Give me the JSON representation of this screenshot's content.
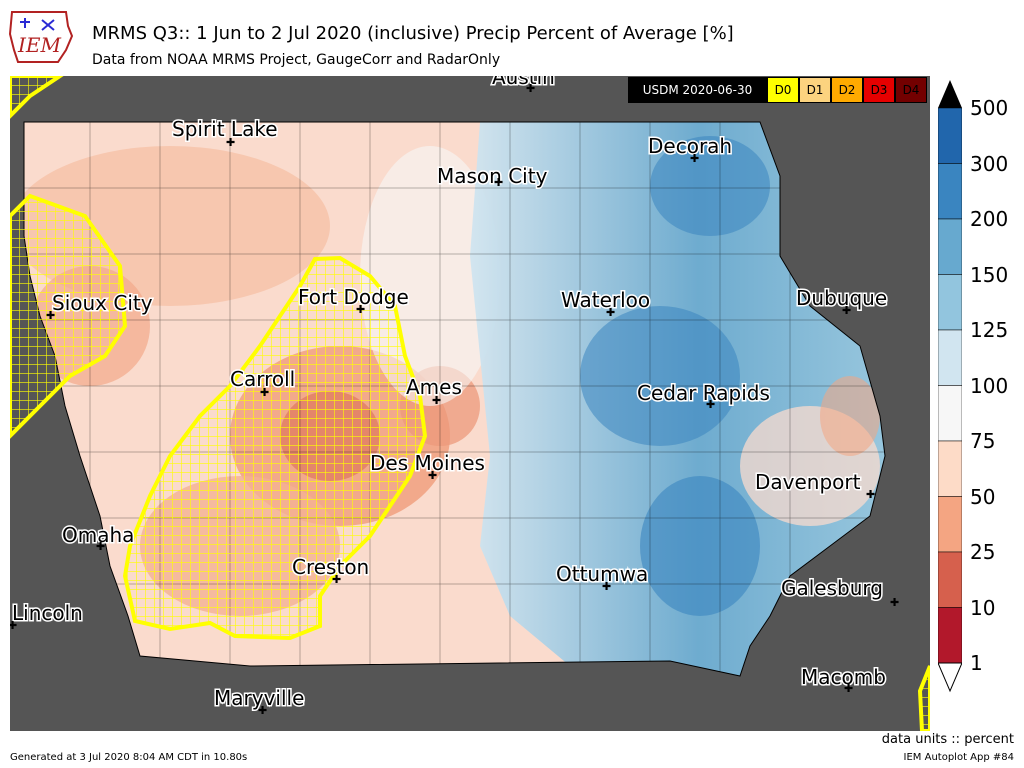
{
  "header": {
    "title": "MRMS Q3:: 1 Jun to 2 Jul 2020 (inclusive) Precip Percent of Average [%]",
    "subtitle": "Data from NOAA MRMS Project, GaugeCorr and RadarOnly",
    "logo_text": "IEM"
  },
  "usdm": {
    "label": "USDM 2020-06-30",
    "categories": [
      {
        "label": "D0",
        "color": "#ffff00"
      },
      {
        "label": "D1",
        "color": "#fcd37f"
      },
      {
        "label": "D2",
        "color": "#ffaa00"
      },
      {
        "label": "D3",
        "color": "#e60000"
      },
      {
        "label": "D4",
        "color": "#730000"
      }
    ]
  },
  "colorbar": {
    "ticks": [
      "500",
      "300",
      "200",
      "150",
      "125",
      "100",
      "75",
      "50",
      "25",
      "10",
      "1"
    ],
    "colors": [
      "#2166ac",
      "#3a85c0",
      "#67a9cf",
      "#92c5de",
      "#d1e5f0",
      "#f7f7f7",
      "#fddbc7",
      "#f4a582",
      "#d6604d",
      "#b2182b"
    ]
  },
  "cities": [
    "Austin",
    "Spirit Lake",
    "Decorah",
    "Mason City",
    "Sioux City",
    "Fort Dodge",
    "Waterloo",
    "Dubuque",
    "Carroll",
    "Ames",
    "Cedar Rapids",
    "Des Moines",
    "Davenport",
    "Omaha",
    "Creston",
    "Ottumwa",
    "Galesburg",
    "Lincoln",
    "Macomb",
    "Maryville"
  ],
  "footer": {
    "units": "data units :: percent",
    "generated": "Generated at 3 Jul 2020 8:04 AM CDT in 10.80s",
    "app": "IEM Autoplot App #84"
  }
}
